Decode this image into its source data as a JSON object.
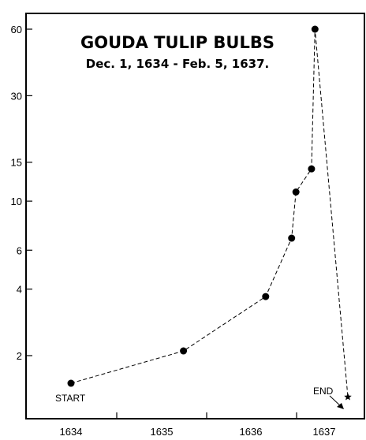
{
  "chart_data": {
    "type": "line",
    "title": "GOUDA TULIP BULBS",
    "subtitle": "Dec. 1, 1634 - Feb. 5, 1637.",
    "xlabel": "",
    "ylabel": "",
    "y_scale": "log",
    "y_ticks": [
      2,
      4,
      6,
      10,
      15,
      30,
      60
    ],
    "ylim": [
      1.25,
      70
    ],
    "x_ticks": [
      "1634",
      "1635",
      "1636",
      "1637"
    ],
    "xlim": [
      1634.0,
      1637.3
    ],
    "grid": false,
    "legend": "none",
    "series": [
      {
        "x": [
          1634.0,
          1635.3,
          1636.25,
          1636.55,
          1636.6,
          1636.78,
          1636.82,
          1637.2
        ],
        "y": [
          1.5,
          2.1,
          3.7,
          6.8,
          11,
          14,
          60,
          1.3
        ],
        "markers": [
          "dot",
          "dot",
          "dot",
          "dot",
          "dot",
          "dot",
          "dot",
          "star"
        ]
      }
    ],
    "annotations": [
      {
        "text": "START",
        "x": 1634.0,
        "y": 1.5
      },
      {
        "text": "END",
        "x": 1637.2,
        "y": 1.3
      }
    ]
  }
}
